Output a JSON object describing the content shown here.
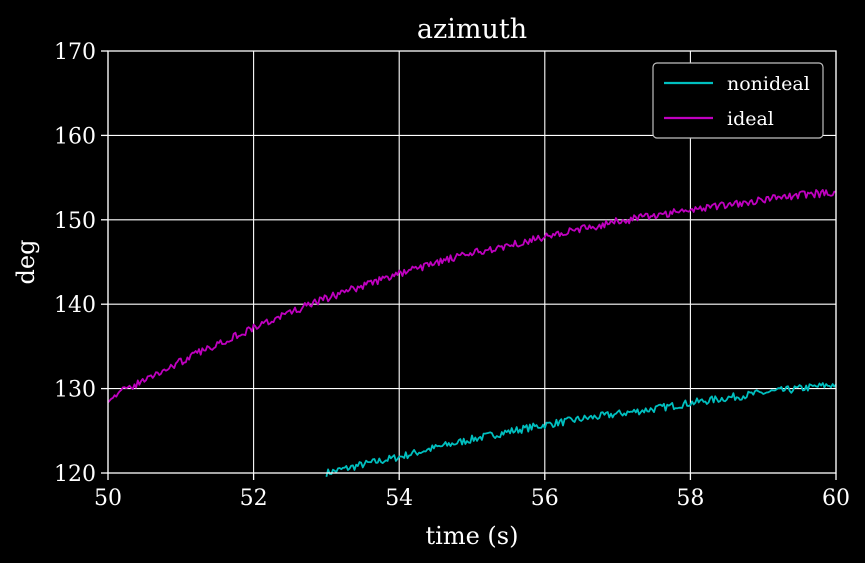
{
  "chart_data": {
    "type": "line",
    "title": "azimuth",
    "xlabel": "time (s)",
    "ylabel": "deg",
    "xlim": [
      50,
      60
    ],
    "ylim": [
      120,
      170
    ],
    "x_ticks": [
      "50",
      "52",
      "54",
      "56",
      "58",
      "60"
    ],
    "y_ticks": [
      "120",
      "130",
      "140",
      "150",
      "160",
      "170"
    ],
    "grid": true,
    "legend_position": "top-right",
    "background": "#000000",
    "series": [
      {
        "name": "nonideal",
        "color": "#00bfbf",
        "x": [
          53.0,
          53.5,
          54.0,
          54.5,
          55.0,
          55.5,
          56.0,
          56.5,
          57.0,
          57.5,
          58.0,
          58.5,
          59.0,
          59.5,
          60.0
        ],
        "y": [
          120.0,
          121.0,
          121.9,
          123.0,
          124.0,
          124.9,
          125.7,
          126.4,
          127.0,
          127.6,
          128.3,
          128.9,
          129.5,
          130.0,
          130.5
        ]
      },
      {
        "name": "ideal",
        "color": "#bf00bf",
        "x": [
          50.0,
          50.5,
          51.0,
          51.5,
          52.0,
          52.5,
          53.0,
          53.5,
          54.0,
          54.5,
          55.0,
          55.5,
          56.0,
          56.5,
          57.0,
          57.5,
          58.0,
          58.5,
          59.0,
          59.5,
          60.0
        ],
        "y": [
          128.8,
          131.0,
          133.2,
          135.3,
          137.2,
          139.0,
          140.7,
          142.2,
          143.6,
          144.9,
          146.0,
          147.0,
          148.0,
          148.9,
          149.8,
          150.5,
          151.2,
          151.8,
          152.4,
          152.9,
          153.3
        ]
      }
    ]
  }
}
